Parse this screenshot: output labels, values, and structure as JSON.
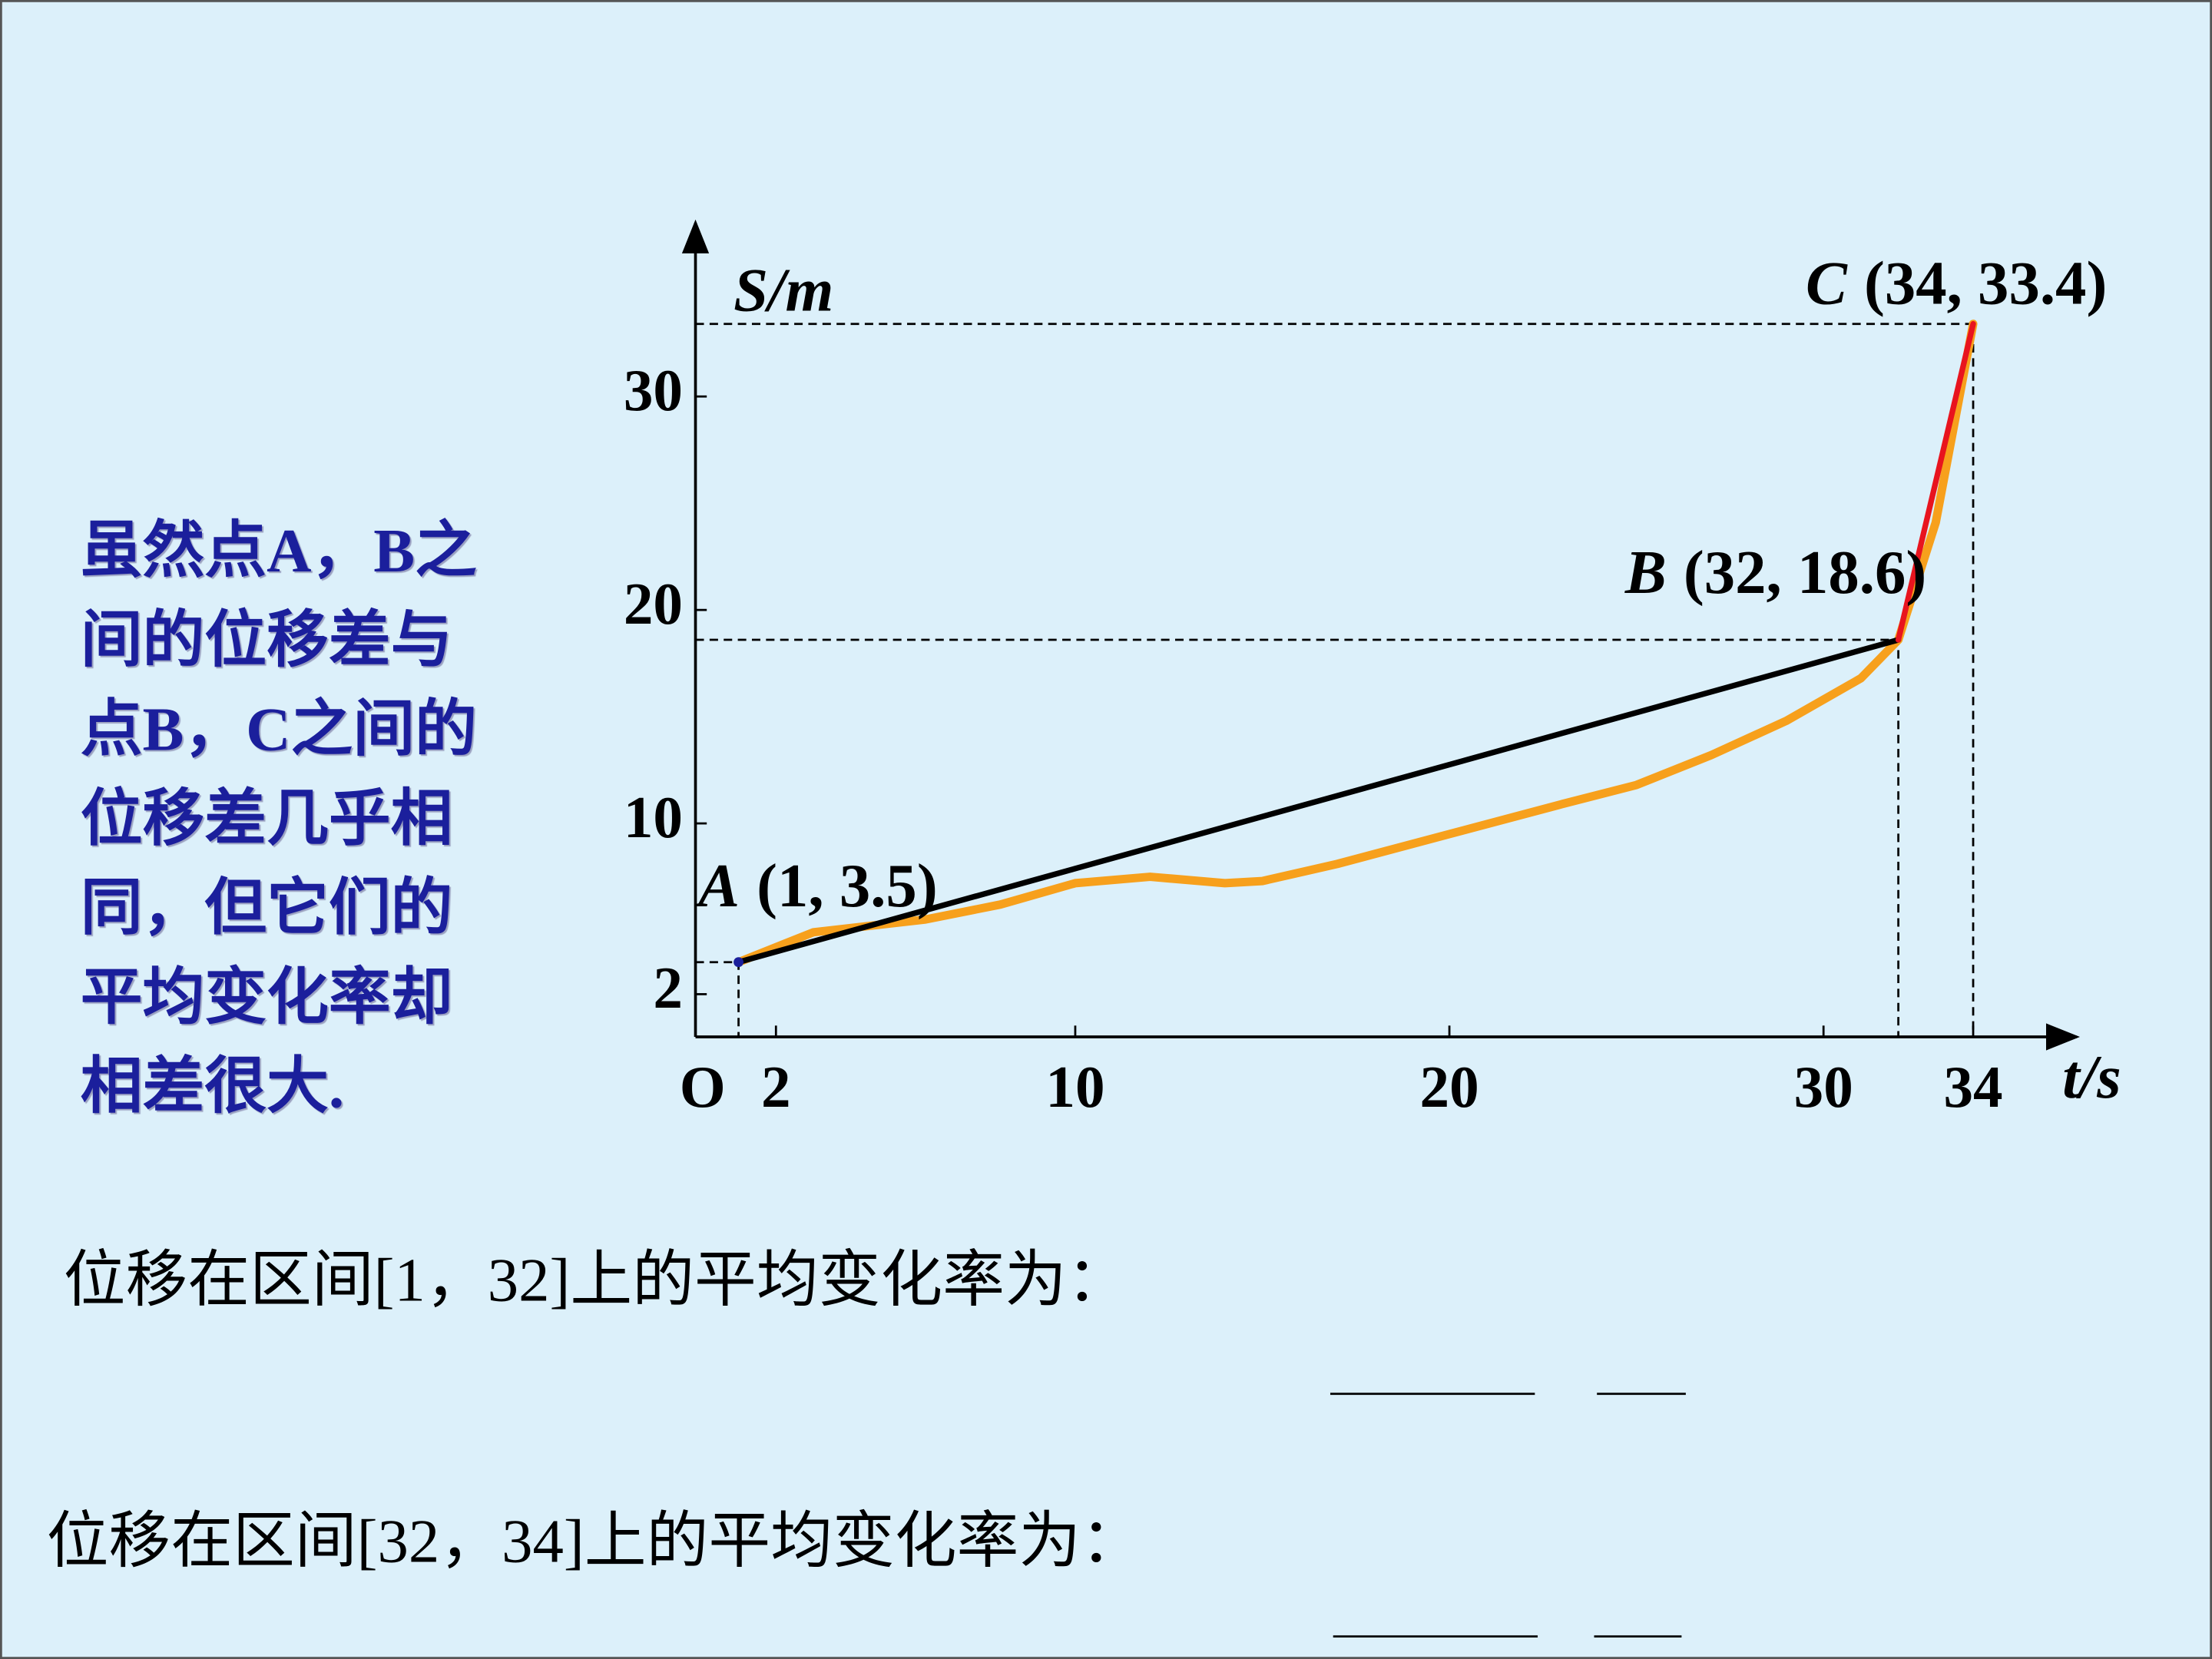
{
  "chart_data": {
    "type": "line",
    "x_label": "t/s",
    "y_label": "S/m",
    "origin_label": "O",
    "xlim": [
      0,
      36.5
    ],
    "ylim": [
      0,
      38
    ],
    "xticks": [
      2,
      10,
      20,
      30,
      34
    ],
    "yticks": [
      2,
      10,
      20,
      30
    ],
    "series": [
      {
        "color": "#f7a01c",
        "x": [
          1,
          3,
          6,
          8,
          10,
          12,
          14,
          15,
          17,
          20,
          23,
          25,
          27,
          29,
          31,
          32,
          33,
          34
        ],
        "values": [
          3.5,
          4.9,
          5.5,
          6.2,
          7.2,
          7.5,
          7.2,
          7.3,
          8.1,
          9.5,
          10.9,
          11.8,
          13.2,
          14.8,
          16.8,
          18.6,
          24.1,
          33.4
        ]
      },
      {
        "color": "#000000",
        "x": [
          1,
          32
        ],
        "values": [
          3.5,
          18.6
        ]
      },
      {
        "color": "#e8141e",
        "x": [
          32,
          34
        ],
        "values": [
          18.6,
          33.4
        ]
      }
    ],
    "point_labels": [
      {
        "letter": "A",
        "coords": "(1, 3.5)"
      },
      {
        "letter": "B",
        "coords": "(32, 18.6)"
      },
      {
        "letter": "C",
        "coords": "(34, 33.4)"
      }
    ]
  },
  "sidebar_lines": [
    "虽然点A，B之",
    "间的位移差与",
    "点B，C之间的",
    "位移差几乎相",
    "同，但它们的",
    "平均变化率却",
    "相差很大."
  ],
  "questions": [
    "位移在区间[1，32]上的平均变化率为：",
    "位移在区间[32，34]上的平均变化率为："
  ]
}
